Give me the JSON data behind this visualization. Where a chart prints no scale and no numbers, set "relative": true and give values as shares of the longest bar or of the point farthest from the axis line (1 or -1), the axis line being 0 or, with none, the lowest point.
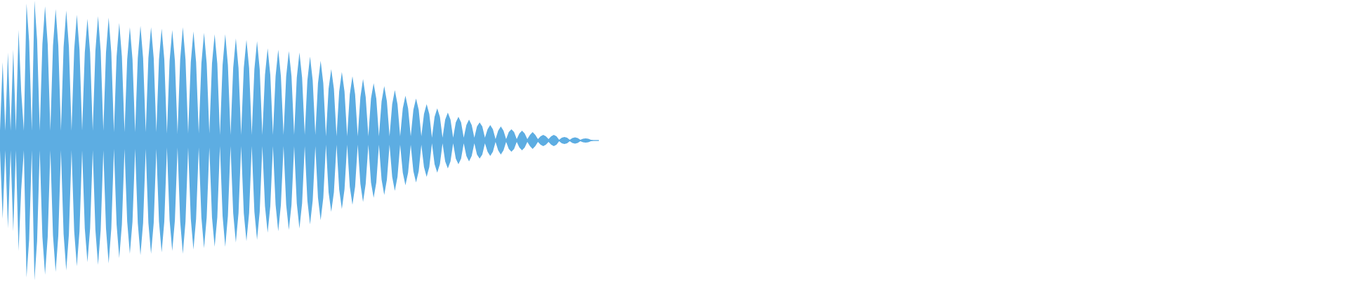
{
  "chart_data": {
    "type": "area",
    "relative": true,
    "categories": [
      null,
      null,
      null,
      null,
      null,
      null,
      null,
      null,
      null,
      null,
      null,
      null,
      null,
      null,
      null,
      null,
      null,
      null,
      null,
      null,
      null,
      null,
      null,
      null,
      null,
      null,
      null,
      null,
      null,
      null,
      null,
      null,
      null,
      null,
      null,
      null,
      null,
      null,
      null,
      null,
      null,
      null,
      null,
      null,
      null,
      null,
      null,
      null,
      null,
      null,
      null,
      null,
      null,
      null,
      null,
      null,
      null,
      null,
      null,
      null,
      null,
      null,
      null,
      null,
      null,
      null,
      null,
      null,
      null,
      null,
      null,
      null,
      null,
      null,
      null,
      null,
      null,
      null,
      null,
      null,
      null,
      null,
      null,
      null,
      null,
      null,
      null,
      null,
      null,
      null,
      null,
      null,
      null,
      null,
      null,
      null,
      null,
      null,
      null,
      null,
      null,
      null,
      null,
      null,
      null,
      null,
      null,
      null,
      null,
      null,
      null,
      null,
      null,
      null,
      null,
      null,
      null,
      null,
      null,
      null,
      null,
      null,
      null,
      null,
      null,
      null,
      null,
      null,
      null,
      null,
      null,
      null,
      null,
      null,
      null,
      null,
      null,
      null,
      null,
      null,
      null,
      null,
      null,
      null,
      null,
      null,
      null,
      null,
      null,
      null,
      null,
      null,
      null,
      null,
      null,
      null,
      null,
      null,
      null,
      null,
      null,
      null,
      null,
      null,
      null,
      null,
      null,
      null,
      null,
      null,
      null,
      null,
      null,
      null,
      null,
      null,
      null,
      null,
      null,
      null,
      null,
      null,
      null,
      null,
      null,
      null,
      null,
      null,
      null,
      null,
      null,
      null,
      null,
      null,
      null,
      null,
      null,
      null,
      null,
      null,
      null,
      null,
      null,
      null,
      null,
      null,
      null,
      null,
      null,
      null,
      null,
      null,
      null,
      null,
      null,
      null,
      null,
      null,
      null,
      null,
      null,
      null,
      null,
      null,
      null,
      null,
      null
    ],
    "series": [
      {
        "color": "#5dade2",
        "values": [
          0.07,
          0.56,
          0.07,
          0.63,
          0.07,
          0.65,
          0.07,
          0.79,
          0.35,
          0.07,
          0.98,
          0.71,
          0.07,
          1.0,
          0.72,
          0.07,
          0.69,
          0.96,
          0.69,
          0.07,
          0.68,
          0.94,
          0.68,
          0.07,
          0.67,
          0.93,
          0.67,
          0.07,
          0.65,
          0.9,
          0.65,
          0.07,
          0.63,
          0.87,
          0.63,
          0.07,
          0.64,
          0.89,
          0.64,
          0.07,
          0.63,
          0.88,
          0.63,
          0.06,
          0.6,
          0.84,
          0.6,
          0.06,
          0.58,
          0.81,
          0.58,
          0.06,
          0.59,
          0.82,
          0.59,
          0.06,
          0.59,
          0.81,
          0.59,
          0.06,
          0.58,
          0.8,
          0.58,
          0.05,
          0.57,
          0.79,
          0.57,
          0.05,
          0.58,
          0.81,
          0.58,
          0.05,
          0.56,
          0.78,
          0.56,
          0.05,
          0.55,
          0.77,
          0.55,
          0.05,
          0.55,
          0.76,
          0.55,
          0.04,
          0.54,
          0.76,
          0.54,
          0.04,
          0.52,
          0.73,
          0.52,
          0.04,
          0.52,
          0.72,
          0.52,
          0.04,
          0.51,
          0.71,
          0.51,
          0.04,
          0.47,
          0.66,
          0.47,
          0.04,
          0.46,
          0.65,
          0.46,
          0.04,
          0.46,
          0.64,
          0.46,
          0.04,
          0.45,
          0.63,
          0.45,
          0.04,
          0.43,
          0.6,
          0.43,
          0.04,
          0.41,
          0.57,
          0.41,
          0.03,
          0.37,
          0.51,
          0.37,
          0.03,
          0.35,
          0.49,
          0.35,
          0.03,
          0.33,
          0.46,
          0.33,
          0.03,
          0.31,
          0.44,
          0.31,
          0.03,
          0.3,
          0.41,
          0.3,
          0.03,
          0.28,
          0.39,
          0.28,
          0.03,
          0.26,
          0.36,
          0.26,
          0.03,
          0.23,
          0.32,
          0.23,
          0.03,
          0.22,
          0.3,
          0.22,
          0.03,
          0.19,
          0.26,
          0.19,
          0.02,
          0.17,
          0.23,
          0.17,
          0.02,
          0.15,
          0.2,
          0.15,
          0.02,
          0.13,
          0.17,
          0.13,
          0.02,
          0.11,
          0.15,
          0.11,
          0.02,
          0.1,
          0.13,
          0.1,
          0.02,
          0.08,
          0.11,
          0.08,
          0.01,
          0.07,
          0.1,
          0.07,
          0.01,
          0.06,
          0.08,
          0.06,
          0.01,
          0.05,
          0.07,
          0.05,
          0.01,
          0.04,
          0.06,
          0.04,
          0.01,
          0.03,
          0.04,
          0.03,
          0.01,
          0.03,
          0.04,
          0.03,
          0.005,
          0.02,
          0.025,
          0.02,
          0.005,
          0.017,
          0.023,
          0.017,
          0.005,
          0.012,
          0.015,
          0.012,
          0.005,
          0.003,
          0.003,
          0.003
        ]
      },
      {
        "color": "#5dade2",
        "values": [
          -0.07,
          -0.56,
          -0.07,
          -0.63,
          -0.07,
          -0.65,
          -0.07,
          -0.79,
          -0.35,
          -0.07,
          -0.98,
          -0.71,
          -0.07,
          -1.0,
          -0.72,
          -0.07,
          -0.69,
          -0.96,
          -0.69,
          -0.07,
          -0.68,
          -0.94,
          -0.68,
          -0.07,
          -0.67,
          -0.93,
          -0.67,
          -0.07,
          -0.65,
          -0.9,
          -0.65,
          -0.07,
          -0.63,
          -0.87,
          -0.63,
          -0.07,
          -0.64,
          -0.89,
          -0.64,
          -0.07,
          -0.63,
          -0.88,
          -0.63,
          -0.06,
          -0.6,
          -0.84,
          -0.6,
          -0.06,
          -0.58,
          -0.81,
          -0.58,
          -0.06,
          -0.59,
          -0.82,
          -0.59,
          -0.06,
          -0.59,
          -0.81,
          -0.59,
          -0.06,
          -0.58,
          -0.8,
          -0.58,
          -0.05,
          -0.57,
          -0.79,
          -0.57,
          -0.05,
          -0.58,
          -0.81,
          -0.58,
          -0.05,
          -0.56,
          -0.78,
          -0.56,
          -0.05,
          -0.55,
          -0.77,
          -0.55,
          -0.05,
          -0.55,
          -0.76,
          -0.55,
          -0.04,
          -0.54,
          -0.76,
          -0.54,
          -0.04,
          -0.52,
          -0.73,
          -0.52,
          -0.04,
          -0.52,
          -0.72,
          -0.52,
          -0.04,
          -0.51,
          -0.71,
          -0.51,
          -0.04,
          -0.47,
          -0.66,
          -0.47,
          -0.04,
          -0.46,
          -0.65,
          -0.46,
          -0.04,
          -0.46,
          -0.64,
          -0.46,
          -0.04,
          -0.45,
          -0.63,
          -0.45,
          -0.04,
          -0.43,
          -0.6,
          -0.43,
          -0.04,
          -0.41,
          -0.57,
          -0.41,
          -0.03,
          -0.37,
          -0.51,
          -0.37,
          -0.03,
          -0.35,
          -0.49,
          -0.35,
          -0.03,
          -0.33,
          -0.46,
          -0.33,
          -0.03,
          -0.31,
          -0.44,
          -0.31,
          -0.03,
          -0.3,
          -0.41,
          -0.3,
          -0.03,
          -0.28,
          -0.39,
          -0.28,
          -0.03,
          -0.26,
          -0.36,
          -0.26,
          -0.03,
          -0.23,
          -0.32,
          -0.23,
          -0.03,
          -0.22,
          -0.3,
          -0.22,
          -0.03,
          -0.19,
          -0.26,
          -0.19,
          -0.02,
          -0.17,
          -0.23,
          -0.17,
          -0.02,
          -0.15,
          -0.2,
          -0.15,
          -0.02,
          -0.13,
          -0.17,
          -0.13,
          -0.02,
          -0.11,
          -0.15,
          -0.11,
          -0.02,
          -0.1,
          -0.13,
          -0.1,
          -0.02,
          -0.08,
          -0.11,
          -0.08,
          -0.01,
          -0.07,
          -0.1,
          -0.07,
          -0.01,
          -0.06,
          -0.08,
          -0.06,
          -0.01,
          -0.05,
          -0.07,
          -0.05,
          -0.01,
          -0.04,
          -0.06,
          -0.04,
          -0.01,
          -0.03,
          -0.04,
          -0.03,
          -0.01,
          -0.03,
          -0.04,
          -0.03,
          -0.005,
          -0.02,
          -0.025,
          -0.02,
          -0.005,
          -0.017,
          -0.023,
          -0.017,
          -0.005,
          -0.012,
          -0.015,
          -0.012,
          -0.005,
          -0.003,
          -0.003,
          -0.003
        ]
      }
    ],
    "ref_lines": [
      {
        "axis": "y",
        "value": 0,
        "color": "#5dade2"
      }
    ]
  }
}
